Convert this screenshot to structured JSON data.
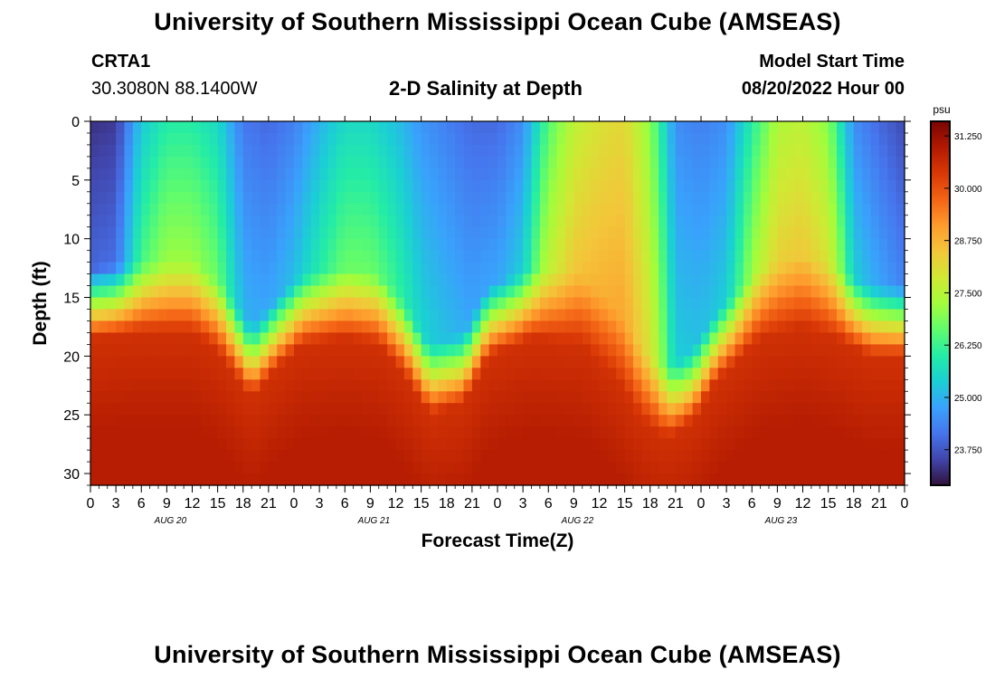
{
  "header": {
    "title": "University of Southern Mississippi Ocean Cube (AMSEAS)",
    "station": "CRTA1",
    "coords": "30.3080N  88.1400W",
    "subtitle": "2-D Salinity at Depth",
    "model_start_label": "Model Start Time",
    "model_start_value": "08/20/2022 Hour 00"
  },
  "footer": {
    "title": "University of Southern Mississippi Ocean Cube (AMSEAS)"
  },
  "colors": {
    "colormap": [
      "#30123b",
      "#4145ab",
      "#4675ed",
      "#39a2fc",
      "#1bcfd4",
      "#24eca6",
      "#61fc6c",
      "#a4fc3b",
      "#d1e834",
      "#f3c63a",
      "#fe9b2d",
      "#f36315",
      "#d93806",
      "#b11901",
      "#7a0402"
    ],
    "axis": "#000000"
  },
  "chart_data": {
    "type": "heatmap",
    "title": "2-D Salinity at Depth",
    "xlabel": "Forecast Time(Z)",
    "ylabel": "Depth (ft)",
    "x_tick_labels": [
      "0",
      "3",
      "6",
      "9",
      "12",
      "15",
      "18",
      "21",
      "0",
      "3",
      "6",
      "9",
      "12",
      "15",
      "18",
      "21",
      "0",
      "3",
      "6",
      "9",
      "12",
      "15",
      "18",
      "21",
      "0",
      "3",
      "6",
      "9",
      "12",
      "15",
      "18",
      "21",
      "0"
    ],
    "x_hours": [
      0,
      3,
      6,
      9,
      12,
      15,
      18,
      21,
      24,
      27,
      30,
      33,
      36,
      39,
      42,
      45,
      48,
      51,
      54,
      57,
      60,
      63,
      66,
      69,
      72,
      75,
      78,
      81,
      84,
      87,
      90,
      93,
      96
    ],
    "day_labels": [
      {
        "label": "AUG 20",
        "hour": 9
      },
      {
        "label": "AUG 21",
        "hour": 33
      },
      {
        "label": "AUG 22",
        "hour": 57
      },
      {
        "label": "AUG 23",
        "hour": 81
      }
    ],
    "xlim": [
      0,
      96
    ],
    "y_ticks": [
      0,
      5,
      10,
      15,
      20,
      25,
      30
    ],
    "y_tick_labels": [
      "0",
      "5",
      "10",
      "15",
      "20",
      "25",
      "30"
    ],
    "ylim": [
      0,
      31
    ],
    "colorbar": {
      "unit": "psu",
      "min": 22.9,
      "max": 31.6,
      "ticks": [
        23.75,
        25.0,
        26.25,
        27.5,
        28.75,
        30.0,
        31.25
      ],
      "tick_labels": [
        "23.750",
        "25.000",
        "26.250",
        "27.500",
        "28.750",
        "30.000",
        "31.250"
      ]
    },
    "surface_salinity_psu": [
      {
        "hour": 0,
        "value": 23.3
      },
      {
        "hour": 3,
        "value": 23.4
      },
      {
        "hour": 6,
        "value": 25.3
      },
      {
        "hour": 9,
        "value": 26.0
      },
      {
        "hour": 12,
        "value": 26.0
      },
      {
        "hour": 15,
        "value": 25.6
      },
      {
        "hour": 18,
        "value": 24.2
      },
      {
        "hour": 21,
        "value": 24.0
      },
      {
        "hour": 24,
        "value": 24.3
      },
      {
        "hour": 27,
        "value": 25.0
      },
      {
        "hour": 30,
        "value": 25.6
      },
      {
        "hour": 33,
        "value": 25.6
      },
      {
        "hour": 36,
        "value": 25.2
      },
      {
        "hour": 39,
        "value": 24.6
      },
      {
        "hour": 42,
        "value": 24.3
      },
      {
        "hour": 45,
        "value": 24.0
      },
      {
        "hour": 48,
        "value": 24.0
      },
      {
        "hour": 51,
        "value": 24.5
      },
      {
        "hour": 54,
        "value": 26.5
      },
      {
        "hour": 57,
        "value": 27.6
      },
      {
        "hour": 60,
        "value": 28.0
      },
      {
        "hour": 63,
        "value": 28.2
      },
      {
        "hour": 66,
        "value": 27.0
      },
      {
        "hour": 69,
        "value": 24.5
      },
      {
        "hour": 72,
        "value": 24.3
      },
      {
        "hour": 75,
        "value": 24.5
      },
      {
        "hour": 78,
        "value": 26.0
      },
      {
        "hour": 81,
        "value": 27.4
      },
      {
        "hour": 84,
        "value": 27.6
      },
      {
        "hour": 87,
        "value": 27.0
      },
      {
        "hour": 90,
        "value": 24.5
      },
      {
        "hour": 93,
        "value": 24.0
      },
      {
        "hour": 96,
        "value": 23.6
      }
    ],
    "halocline_depth_ft": [
      {
        "hour": 0,
        "value": 16.5
      },
      {
        "hour": 6,
        "value": 16.0
      },
      {
        "hour": 12,
        "value": 16.0
      },
      {
        "hour": 15,
        "value": 17.5
      },
      {
        "hour": 19,
        "value": 21.5
      },
      {
        "hour": 22,
        "value": 19.0
      },
      {
        "hour": 25,
        "value": 17.0
      },
      {
        "hour": 30,
        "value": 16.5
      },
      {
        "hour": 34,
        "value": 17.0
      },
      {
        "hour": 37,
        "value": 19.5
      },
      {
        "hour": 40,
        "value": 23.0
      },
      {
        "hour": 44,
        "value": 22.0
      },
      {
        "hour": 47,
        "value": 18.0
      },
      {
        "hour": 52,
        "value": 16.5
      },
      {
        "hour": 58,
        "value": 17.0
      },
      {
        "hour": 62,
        "value": 20.0
      },
      {
        "hour": 65,
        "value": 23.5
      },
      {
        "hour": 68,
        "value": 25.0
      },
      {
        "hour": 71,
        "value": 23.5
      },
      {
        "hour": 74,
        "value": 20.0
      },
      {
        "hour": 79,
        "value": 16.5
      },
      {
        "hour": 84,
        "value": 15.5
      },
      {
        "hour": 88,
        "value": 16.5
      },
      {
        "hour": 92,
        "value": 18.0
      },
      {
        "hour": 96,
        "value": 18.0
      }
    ],
    "bottom_salinity_psu": 30.9
  }
}
